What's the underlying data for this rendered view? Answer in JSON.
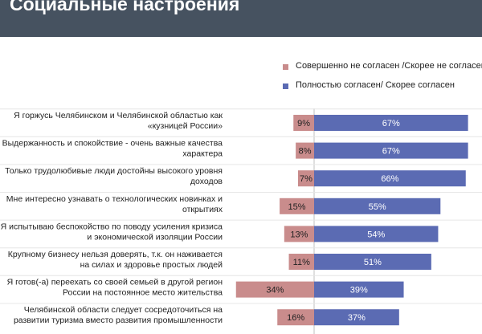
{
  "header": {
    "title": "Социальные настроения"
  },
  "colors": {
    "header_bg": "#465260",
    "disagree": "#C98C8C",
    "agree": "#5B6BB3"
  },
  "chart_data": {
    "type": "bar",
    "orientation": "horizontal-diverging",
    "categories": [
      "Я горжусь Челябинском и Челябинской областью как «кузницей России»",
      "Выдержанность и спокойствие - очень важные качества характера",
      "Только трудолюбивые люди достойны высокого уровня доходов",
      "Мне интересно узнавать о технологических новинках и открытиях",
      "Я испытываю беспокойство по поводу усиления кризиса и экономической изоляции России",
      "Крупному бизнесу нельзя доверять, т.к. он наживается на силах и здоровье простых людей",
      "Я готов(-а) переехать со своей семьей в другой регион России на постоянное место жительства",
      "Челябинской области следует сосредоточиться на развитии туризма вместо развития промышленности"
    ],
    "category_lines": [
      [
        "Я горжусь Челябинском и Челябинской областью как",
        "«кузницей России»"
      ],
      [
        "Выдержанность и спокойствие - очень важные качества",
        "характера"
      ],
      [
        "Только трудолюбивые люди достойны высокого уровня",
        "доходов"
      ],
      [
        "Мне интересно узнавать о технологических новинках и",
        "открытиях"
      ],
      [
        "Я испытываю беспокойство по поводу усиления кризиса",
        "и экономической изоляции России"
      ],
      [
        "Крупному бизнесу нельзя доверять, т.к. он наживается",
        "на силах и здоровье простых людей"
      ],
      [
        "Я готов(-а) переехать со своей семьей в другой регион",
        "России на постоянное место жительства"
      ],
      [
        "Челябинской области следует сосредоточиться на",
        "развитии туризма вместо развития промышленности"
      ]
    ],
    "series": [
      {
        "name": "Совершенно не согласен /Скорее не согласен",
        "values": [
          9,
          8,
          7,
          15,
          13,
          11,
          34,
          16
        ],
        "labels": [
          "9%",
          "8%",
          "7%",
          "15%",
          "13%",
          "11%",
          "34%",
          "16%"
        ],
        "color": "#C98C8C"
      },
      {
        "name": "Полностью согласен/ Скорее согласен",
        "values": [
          67,
          67,
          66,
          55,
          54,
          51,
          39,
          37
        ],
        "labels": [
          "67%",
          "67%",
          "66%",
          "55%",
          "54%",
          "51%",
          "39%",
          "37%"
        ],
        "color": "#5B6BB3"
      }
    ],
    "legend_position": "top-right",
    "grid": false
  }
}
